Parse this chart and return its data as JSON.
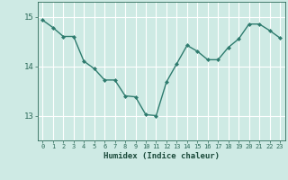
{
  "x": [
    0,
    1,
    2,
    3,
    4,
    5,
    6,
    7,
    8,
    9,
    10,
    11,
    12,
    13,
    14,
    15,
    16,
    17,
    18,
    19,
    20,
    21,
    22,
    23
  ],
  "y": [
    14.93,
    14.78,
    14.6,
    14.6,
    14.1,
    13.95,
    13.72,
    13.72,
    13.4,
    13.38,
    13.02,
    13.0,
    13.68,
    14.05,
    14.42,
    14.3,
    14.13,
    14.13,
    14.38,
    14.55,
    14.85,
    14.85,
    14.72,
    14.57
  ],
  "xlabel": "Humidex (Indice chaleur)",
  "ylim": [
    12.5,
    15.3
  ],
  "xlim": [
    -0.5,
    23.5
  ],
  "yticks": [
    13,
    14,
    15
  ],
  "xticks": [
    0,
    1,
    2,
    3,
    4,
    5,
    6,
    7,
    8,
    9,
    10,
    11,
    12,
    13,
    14,
    15,
    16,
    17,
    18,
    19,
    20,
    21,
    22,
    23
  ],
  "line_color": "#2e7b6e",
  "bg_color": "#ceeae4",
  "grid_color": "#ffffff",
  "tick_color": "#2e6b5a",
  "label_color": "#1a4a3a",
  "title_fontsize": 7,
  "xlabel_fontsize": 6.5,
  "ytick_fontsize": 6.5,
  "xtick_fontsize": 5.0
}
